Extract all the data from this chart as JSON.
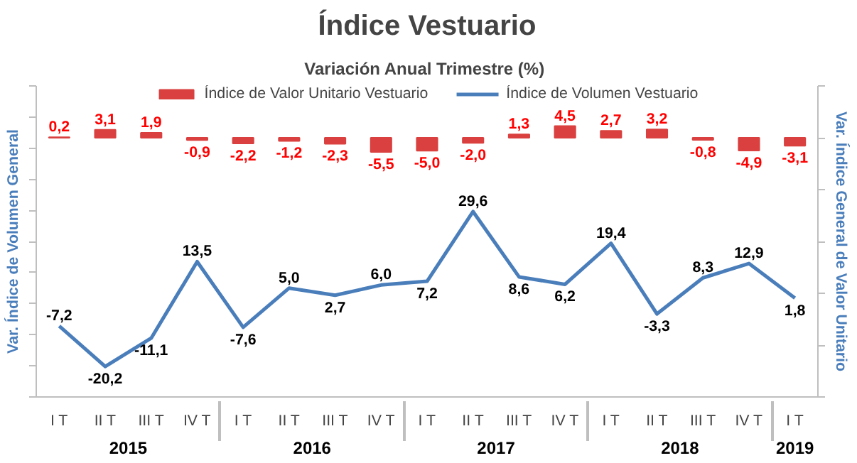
{
  "chart_data": {
    "type": "bar",
    "title": "Índice Vestuario",
    "subtitle": "Variación Anual Trimestre  (%)",
    "ylabel": "Var. Índice de Volumen General",
    "y2label": "Var. Índice General de Valor Unitario",
    "categories": [
      "I T",
      "II T",
      "III T",
      "IV T",
      "I T",
      "II T",
      "III T",
      "IV T",
      "I T",
      "II T",
      "III T",
      "IV T",
      "I T",
      "II T",
      "III T",
      "IV T",
      "I T"
    ],
    "annotations": [
      "2015",
      "2016",
      "2017",
      "2018",
      "2019"
    ],
    "series": [
      {
        "name": "Índice de Valor Unitario Vestuario",
        "axis": "y2",
        "color": "#d9403f",
        "values": [
          0.2,
          3.1,
          1.9,
          -0.9,
          -2.2,
          -1.2,
          -2.3,
          -5.5,
          -5.0,
          -2.0,
          1.3,
          4.5,
          2.7,
          3.2,
          -0.8,
          -4.9,
          -3.1
        ],
        "value_labels": [
          "0,2",
          "3,1",
          "1,9",
          "-0,9",
          "-2,2",
          "-1,2",
          "-2,3",
          "-5,5",
          "-5,0",
          "-2,0",
          "1,3",
          "4,5",
          "2,7",
          "3,2",
          "-0,8",
          "-4,9",
          "-3,1"
        ]
      },
      {
        "name": "Índice de Volumen Vestuario",
        "type": "line",
        "color": "#4a7ebb",
        "values": [
          -7.2,
          -20.2,
          -11.1,
          13.5,
          -7.6,
          5.0,
          2.7,
          6.0,
          7.2,
          29.6,
          8.6,
          6.2,
          19.4,
          -3.3,
          8.3,
          12.9,
          1.8
        ],
        "value_labels": [
          "-7,2",
          "-20,2",
          "-11,1",
          "13,5",
          "-7,6",
          "5,0",
          "2,7",
          "6,0",
          "7,2",
          "29,6",
          "8,6",
          "6,2",
          "19,4",
          "-3,3",
          "8,3",
          "12,9",
          "1,8"
        ]
      }
    ],
    "ylim": [
      -30,
      70
    ],
    "yticks": [
      {
        "value": -30,
        "label": null
      },
      {
        "value": -20,
        "label": null
      },
      {
        "value": -10,
        "label": null
      },
      {
        "value": 0,
        "label": null
      },
      {
        "value": 10,
        "label": null
      },
      {
        "value": 20,
        "label": null
      },
      {
        "value": 30,
        "label": null
      },
      {
        "value": 40,
        "label": null
      },
      {
        "value": 50,
        "label": null
      },
      {
        "value": 60,
        "label": null
      },
      {
        "value": 70,
        "label": null
      }
    ],
    "y2lim": [
      -100,
      20
    ],
    "y2ticks": [
      {
        "value": -100,
        "label": null
      },
      {
        "value": -80,
        "label": null
      },
      {
        "value": -60,
        "label": null
      },
      {
        "value": -40,
        "label": null
      },
      {
        "value": -20,
        "label": null
      },
      {
        "value": 0,
        "label": null
      },
      {
        "value": 20,
        "label": null
      }
    ],
    "tick_labels": "x",
    "legend": "top",
    "line_style": "solid"
  }
}
